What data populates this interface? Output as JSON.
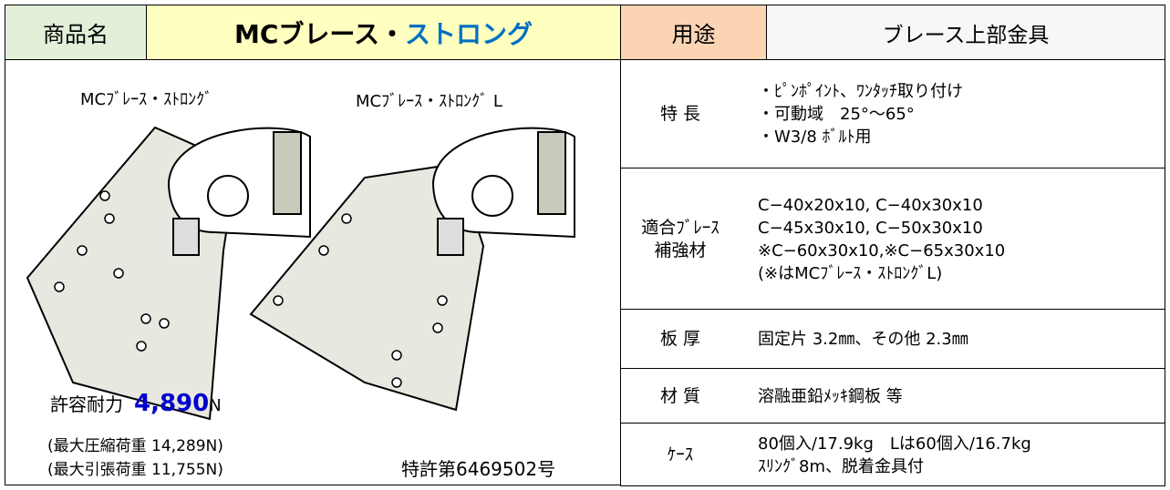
{
  "header": {
    "product_label": "商品名",
    "product_name_black": "MCブレース・",
    "product_name_blue": "ストロング",
    "use_label": "用途",
    "use_value": "ブレース上部金具"
  },
  "left": {
    "image_label_1": "MCﾌﾞﾚｰｽ・ｽﾄﾛﾝｸﾞ",
    "image_label_2": "MCﾌﾞﾚｰｽ・ｽﾄﾛﾝｸﾞ L",
    "capacity_label": "許容耐力",
    "capacity_value": "4,890",
    "capacity_unit": "N",
    "max_compression": "(最大圧縮荷重 14,289N)",
    "max_tension": "(最大引張荷重 11,755N)",
    "patent": "特許第6469502号"
  },
  "spec": {
    "rows": [
      {
        "label": [
          "特 長"
        ],
        "lines": [
          "・ﾋﾟﾝﾎﾟｲﾝﾄ、ﾜﾝﾀｯﾁ取り付け",
          "・可動域　25°～65°",
          "・W3/8 ﾎﾞﾙﾄ用"
        ]
      },
      {
        "label": [
          "適合ﾌﾞﾚｰｽ",
          "補強材"
        ],
        "lines": [
          "C−40x20x10, C−40x30x10",
          "C−45x30x10, C−50x30x10",
          "※C−60x30x10,※C−65x30x10",
          "(※はMCﾌﾞﾚｰｽ・ｽﾄﾛﾝｸﾞL)"
        ]
      },
      {
        "label": [
          "板 厚"
        ],
        "lines": [
          "固定片 3.2㎜、その他 2.3㎜"
        ]
      },
      {
        "label": [
          "材 質"
        ],
        "lines": [
          "溶融亜鉛ﾒｯｷ鋼板 等"
        ]
      },
      {
        "label": [
          "ｹｰｽ"
        ],
        "lines": [
          "80個入/17.9kg　Lは60個入/16.7kg",
          "ｽﾘﾝｸﾞ8m、脱着金具付"
        ]
      }
    ]
  }
}
